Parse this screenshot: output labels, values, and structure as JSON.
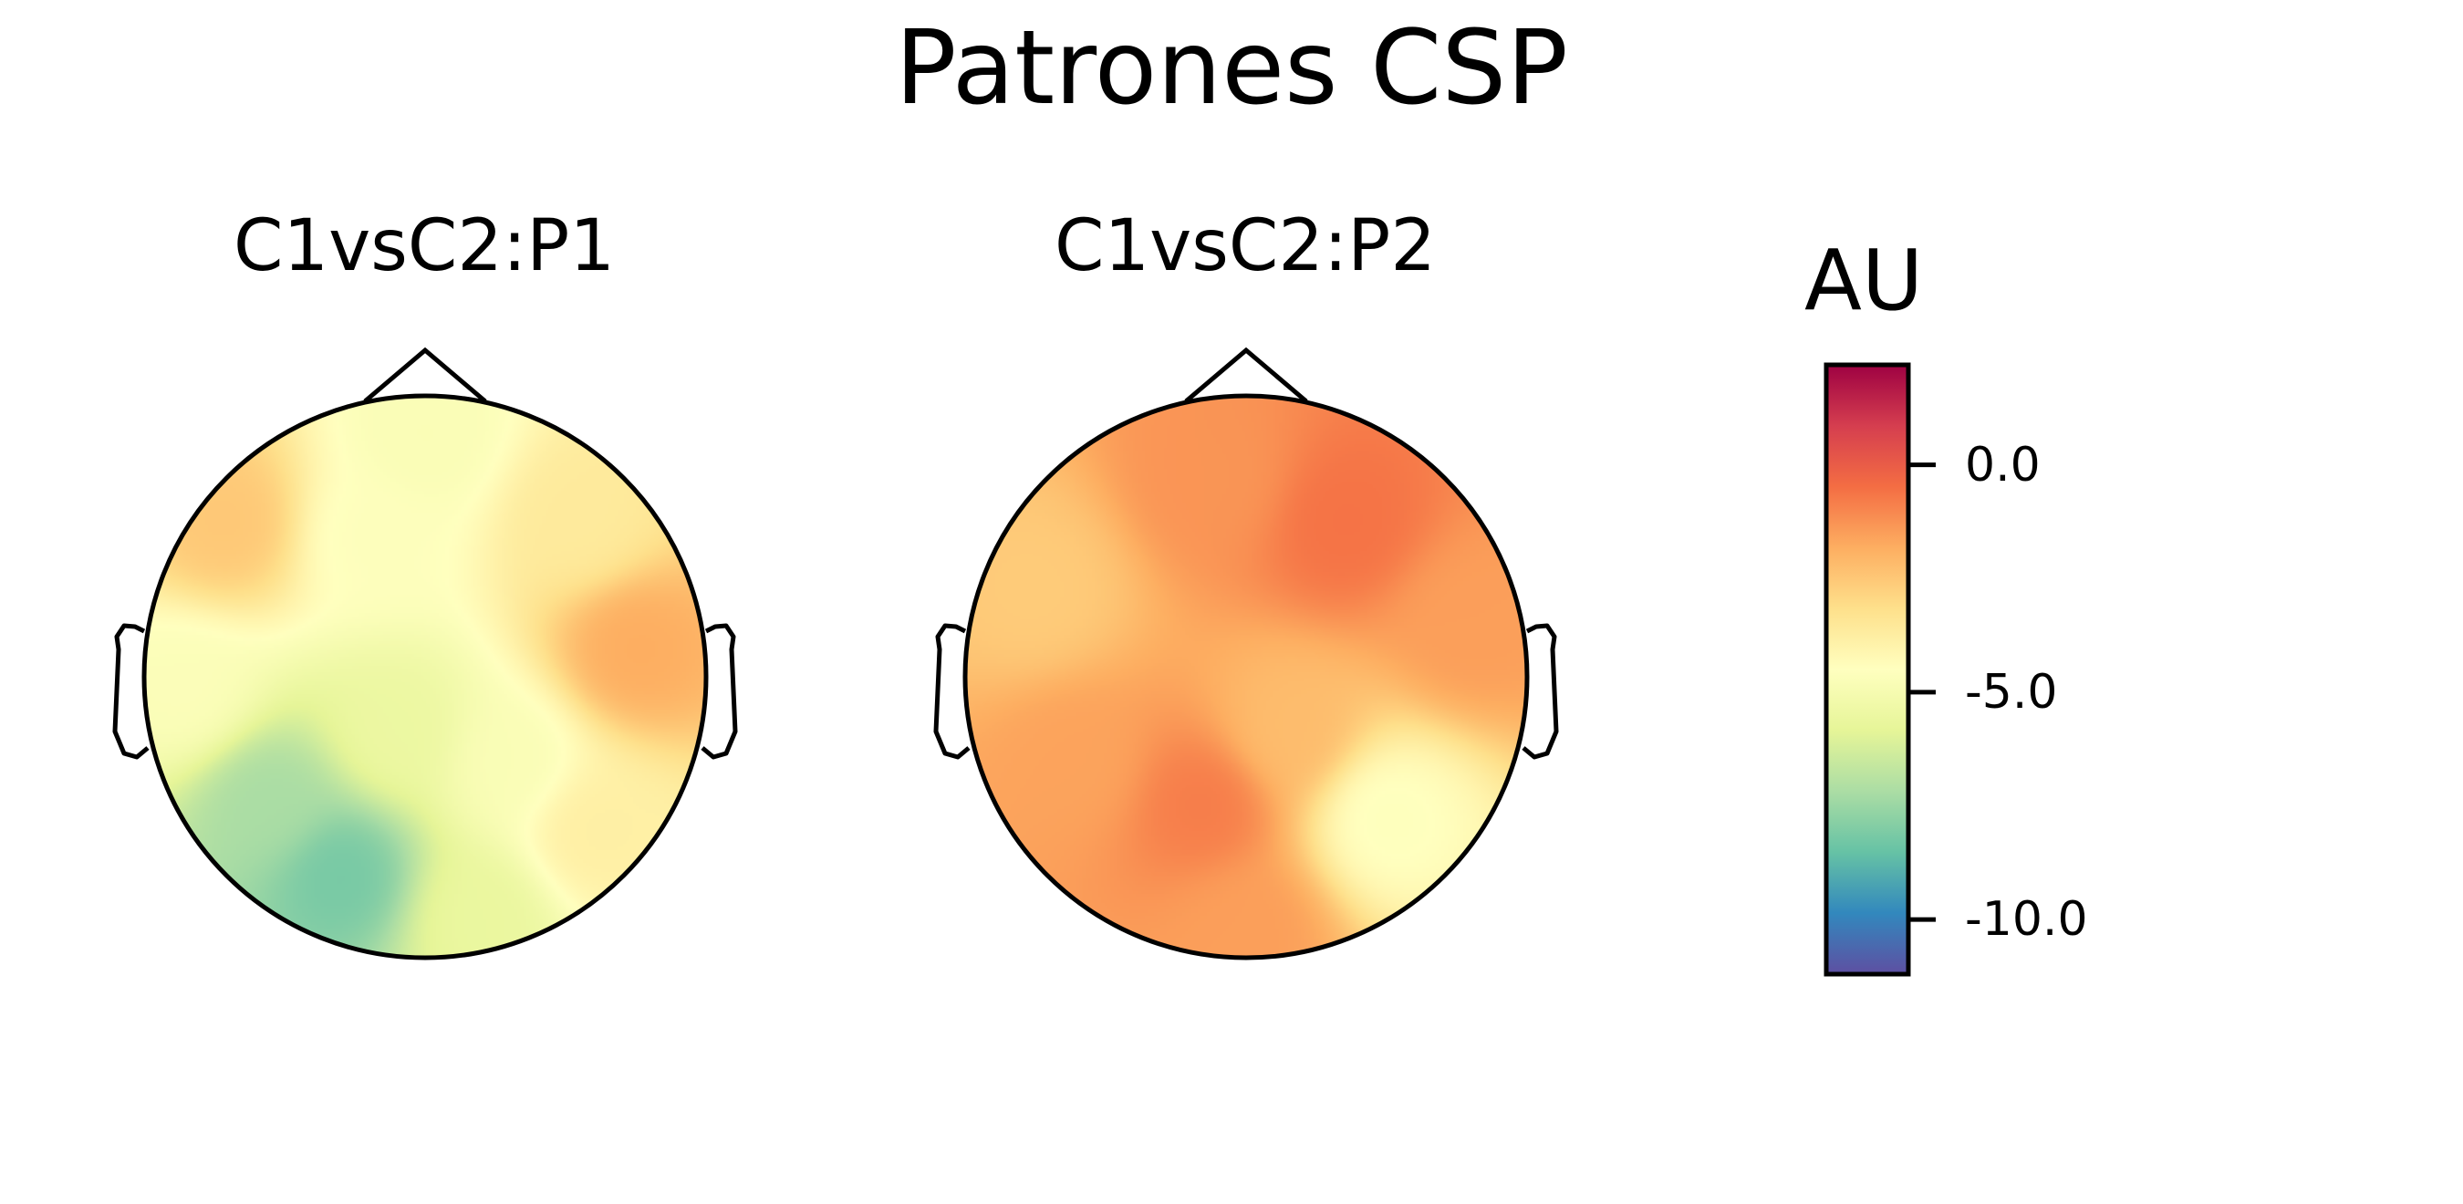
{
  "chart_data": {
    "type": "heatmap",
    "title": "Patrones CSP",
    "colormap": "Spectral_r",
    "panels": [
      {
        "title": "C1vsC2:P1",
        "sources": [
          {
            "pos": [
              0.0,
              0.85
            ],
            "value": -4.8
          },
          {
            "pos": [
              -0.7,
              0.55
            ],
            "value": -2.5
          },
          {
            "pos": [
              -0.2,
              0.5
            ],
            "value": -4.6
          },
          {
            "pos": [
              0.55,
              0.55
            ],
            "value": -3.6
          },
          {
            "pos": [
              0.75,
              0.1
            ],
            "value": -1.8
          },
          {
            "pos": [
              -0.85,
              -0.05
            ],
            "value": -4.7
          },
          {
            "pos": [
              -0.1,
              -0.2
            ],
            "value": -5.5
          },
          {
            "pos": [
              0.3,
              -0.3
            ],
            "value": -4.8
          },
          {
            "pos": [
              -0.55,
              -0.45
            ],
            "value": -7.2
          },
          {
            "pos": [
              -0.3,
              -0.7
            ],
            "value": -8.2
          },
          {
            "pos": [
              0.2,
              -0.85
            ],
            "value": -5.6
          },
          {
            "pos": [
              0.6,
              -0.55
            ],
            "value": -3.8
          }
        ]
      },
      {
        "title": "C1vsC2:P2",
        "sources": [
          {
            "pos": [
              -0.75,
              0.3
            ],
            "value": -2.6
          },
          {
            "pos": [
              -0.1,
              0.7
            ],
            "value": -1.3
          },
          {
            "pos": [
              0.35,
              0.55
            ],
            "value": -0.6
          },
          {
            "pos": [
              0.8,
              0.2
            ],
            "value": -1.5
          },
          {
            "pos": [
              -0.6,
              -0.3
            ],
            "value": -1.6
          },
          {
            "pos": [
              -0.15,
              -0.45
            ],
            "value": -0.8
          },
          {
            "pos": [
              0.5,
              -0.5
            ],
            "value": -4.6
          },
          {
            "pos": [
              0.15,
              -0.2
            ],
            "value": -2.2
          },
          {
            "pos": [
              0.0,
              -0.9
            ],
            "value": -1.5
          }
        ]
      }
    ],
    "colorbar": {
      "label": "AU",
      "vmin": -11.2,
      "vmax": 2.2,
      "ticks": [
        0.0,
        -5.0,
        -10.0
      ],
      "tick_labels": [
        "0.0",
        "-5.0",
        "-10.0"
      ]
    }
  }
}
